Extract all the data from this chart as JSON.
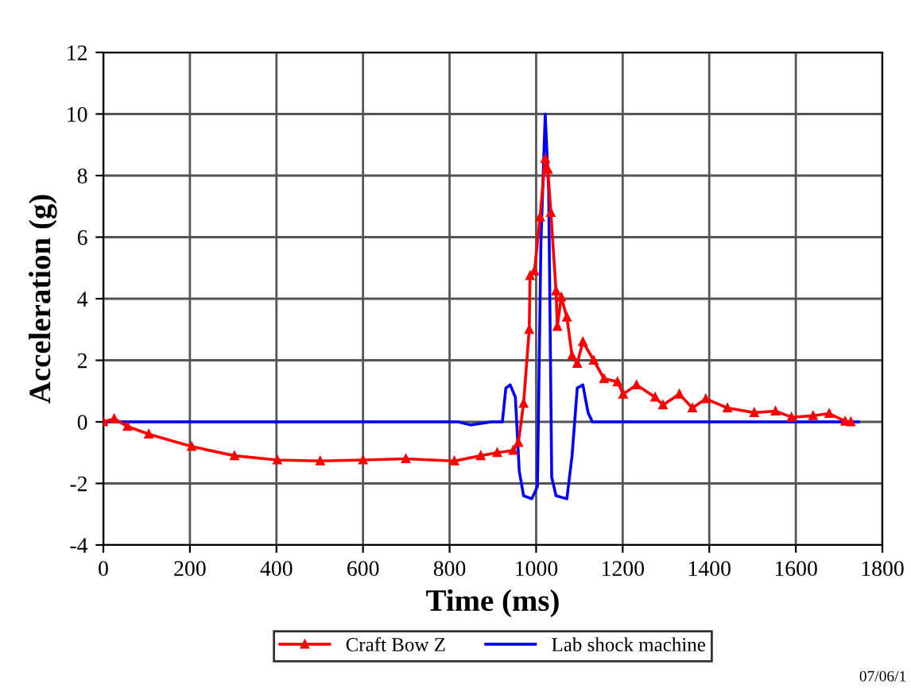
{
  "chart_data": {
    "type": "line",
    "xlabel": "Time (ms)",
    "ylabel": "Acceleration (g)",
    "xlim": [
      0,
      1800
    ],
    "xticks": [
      0,
      200,
      400,
      600,
      800,
      1000,
      1200,
      1400,
      1600,
      1800
    ],
    "ylim": [
      -4,
      12
    ],
    "yticks": [
      -4,
      -2,
      0,
      2,
      4,
      6,
      8,
      10,
      12
    ],
    "grid": true,
    "legend": "bottom",
    "annotations": [
      "07/06/1"
    ],
    "series": [
      {
        "name": "Craft Bow Z",
        "color": "#ff0000",
        "marker": "triangle",
        "x": [
          0,
          25,
          56,
          105,
          204,
          303,
          402,
          501,
          600,
          699,
          811,
          872,
          910,
          947,
          959,
          971,
          984,
          986,
          996,
          1009,
          1021,
          1027,
          1034,
          1046,
          1049,
          1058,
          1071,
          1083,
          1095,
          1108,
          1133,
          1157,
          1188,
          1201,
          1232,
          1275,
          1293,
          1331,
          1361,
          1392,
          1442,
          1504,
          1553,
          1590,
          1640,
          1677,
          1714,
          1727
        ],
        "values": [
          0,
          0.1,
          -0.15,
          -0.4,
          -0.8,
          -1.1,
          -1.24,
          -1.27,
          -1.24,
          -1.2,
          -1.27,
          -1.1,
          -1.0,
          -0.93,
          -0.67,
          0.6,
          3.0,
          4.75,
          4.9,
          6.65,
          8.55,
          8.2,
          6.8,
          4.25,
          3.1,
          4.05,
          3.4,
          2.15,
          1.9,
          2.6,
          2.0,
          1.4,
          1.3,
          0.9,
          1.2,
          0.8,
          0.55,
          0.9,
          0.45,
          0.75,
          0.45,
          0.3,
          0.35,
          0.15,
          0.2,
          0.27,
          0.02,
          0
        ]
      },
      {
        "name": "Lab shock machine",
        "color": "#0000ff",
        "x": [
          0,
          820,
          848,
          897,
          922,
          930,
          940,
          952,
          961,
          971,
          990,
          1003,
          1011,
          1021,
          1029,
          1036,
          1046,
          1071,
          1083,
          1095,
          1108,
          1120,
          1130,
          1219,
          1745
        ],
        "values": [
          0,
          0,
          -0.1,
          0,
          0,
          1.1,
          1.2,
          0.8,
          -1.6,
          -2.4,
          -2.5,
          -2.1,
          5.8,
          10.0,
          7.5,
          -1.8,
          -2.4,
          -2.5,
          -1.1,
          1.1,
          1.2,
          0.3,
          0,
          0,
          0
        ]
      }
    ]
  }
}
